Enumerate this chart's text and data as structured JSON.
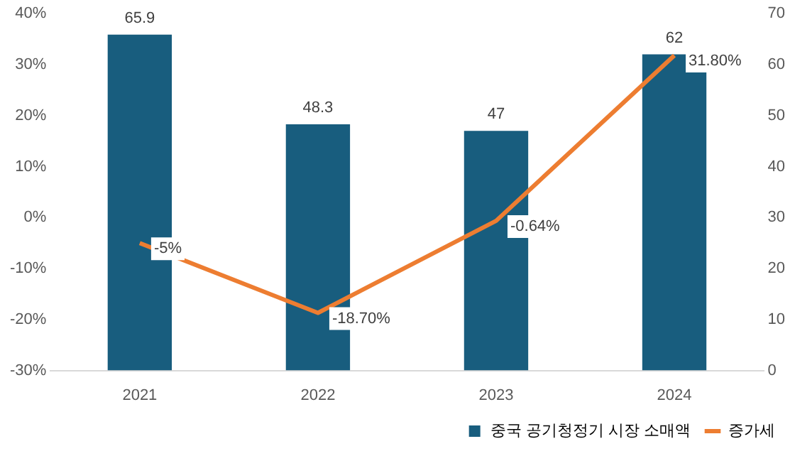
{
  "chart_data": {
    "type": "bar",
    "categories": [
      "2021",
      "2022",
      "2023",
      "2024"
    ],
    "series": [
      {
        "name": "중국 공기청정기 시장 소매액",
        "axis": "y2",
        "color": "#185d7e",
        "values": [
          65.9,
          48.3,
          47,
          62
        ],
        "value_labels": [
          "65.9",
          "48.3",
          "47",
          "62"
        ]
      },
      {
        "name": "증가세",
        "type": "line",
        "axis": "y",
        "color": "#ed7d31",
        "values": [
          -5,
          -18.7,
          -0.64,
          31.8
        ],
        "value_labels": [
          "-5%",
          "-18.70%",
          "-0.64%",
          "31.80%"
        ]
      }
    ],
    "ylim": [
      -30,
      40
    ],
    "yticks": [
      {
        "value": -30,
        "label": "-30%"
      },
      {
        "value": -20,
        "label": "-20%"
      },
      {
        "value": -10,
        "label": "-10%"
      },
      {
        "value": 0,
        "label": "0%"
      },
      {
        "value": 10,
        "label": "10%"
      },
      {
        "value": 20,
        "label": "20%"
      },
      {
        "value": 30,
        "label": "30%"
      },
      {
        "value": 40,
        "label": "40%"
      }
    ],
    "y2lim": [
      0,
      70
    ],
    "y2ticks": [
      0,
      10,
      20,
      30,
      40,
      50,
      60,
      70
    ],
    "grid": false,
    "legend": "bottom right",
    "marker": "none",
    "line_style": "solid"
  }
}
